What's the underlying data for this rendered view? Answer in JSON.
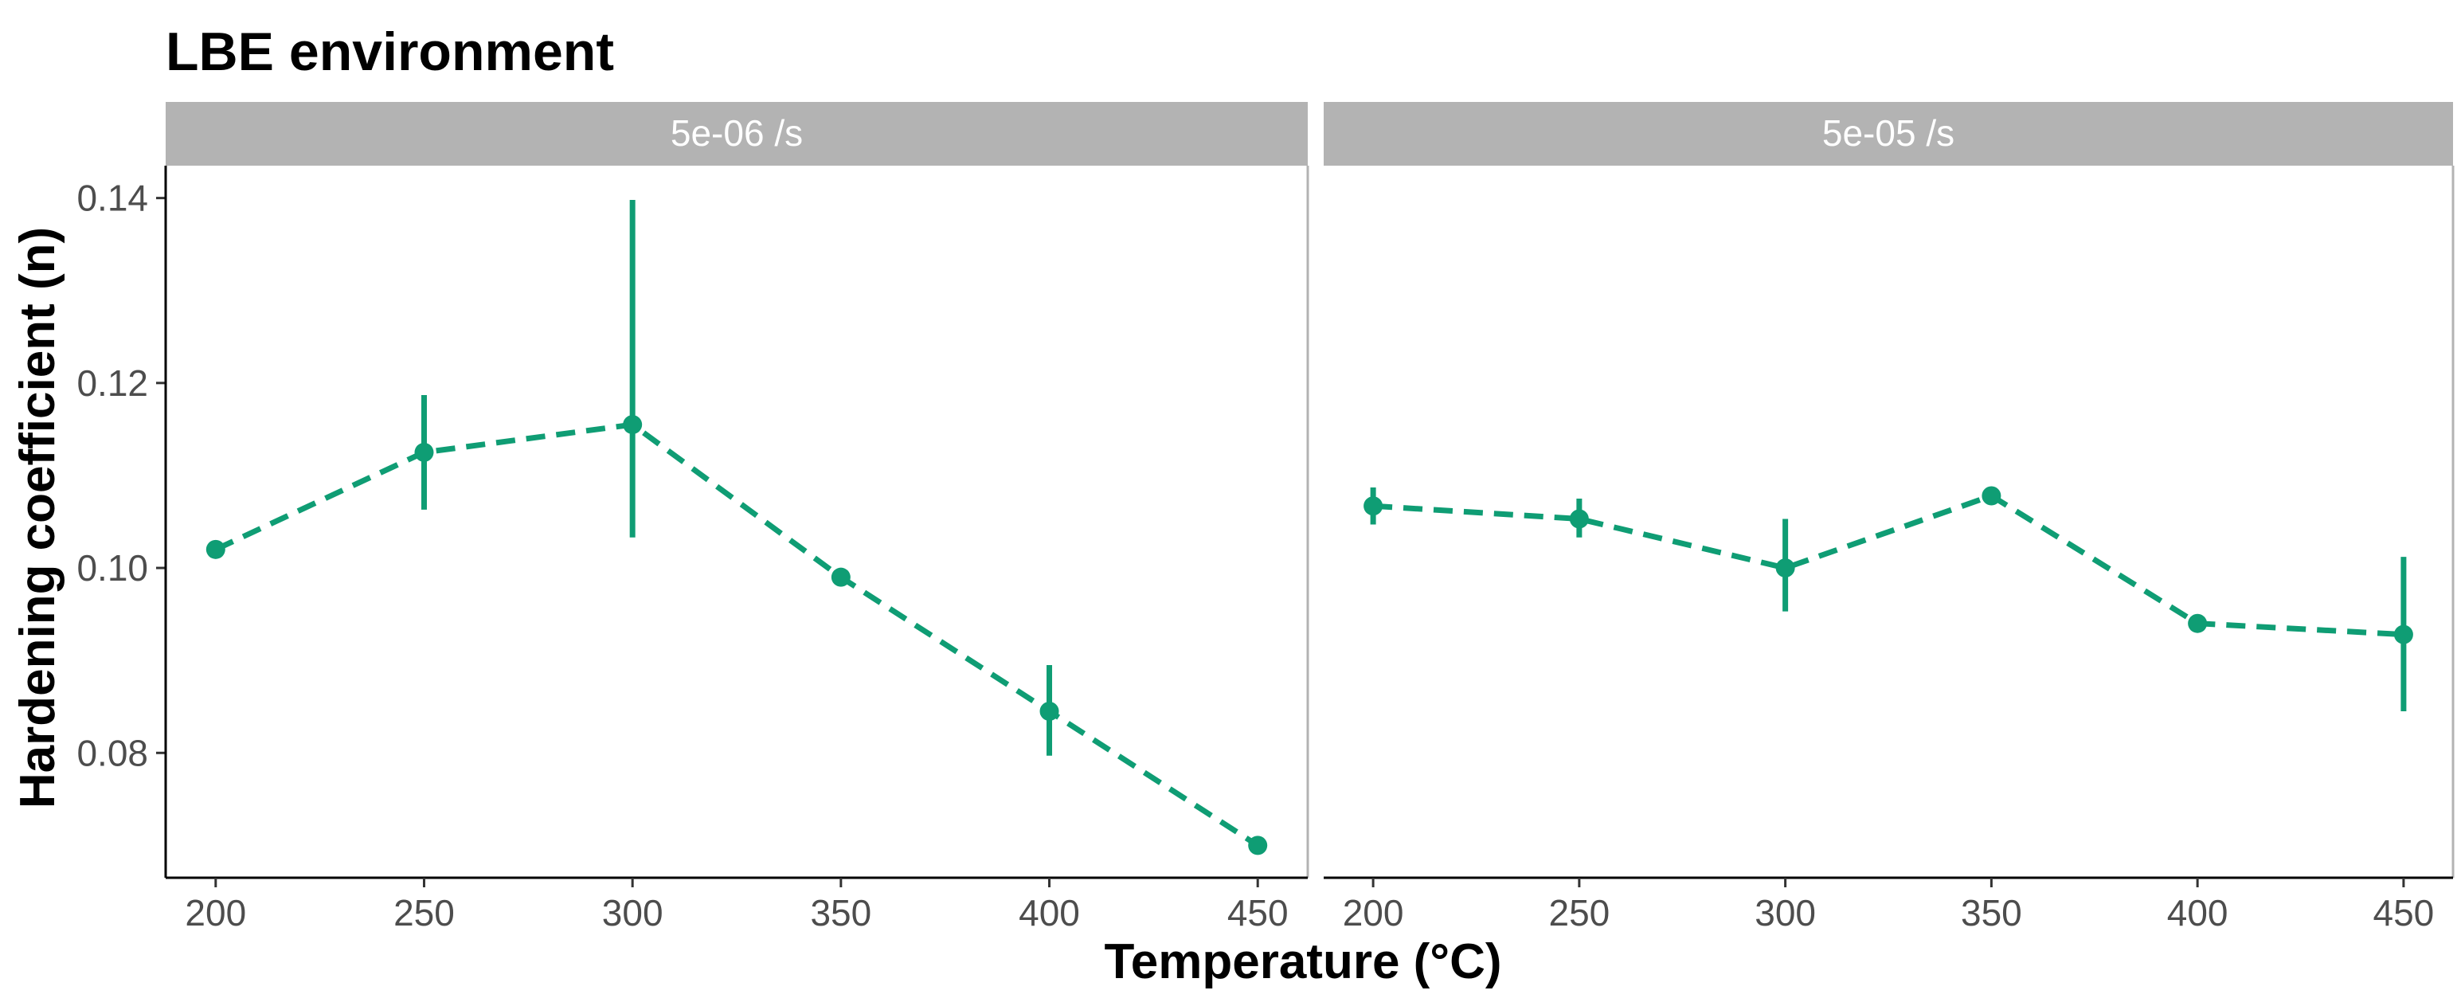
{
  "chart_data": {
    "type": "line",
    "title": "LBE environment",
    "xlabel": "Temperature (°C)",
    "ylabel": "Hardening coefficient (n)",
    "xlim": [
      188,
      462
    ],
    "ylim": [
      0.0665,
      0.1435
    ],
    "xticks": [
      200,
      250,
      300,
      350,
      400,
      450
    ],
    "yticks": [
      0.08,
      0.1,
      0.12,
      0.14
    ],
    "ytick_labels": [
      "0.08",
      "0.10",
      "0.12",
      "0.14"
    ],
    "grid": false,
    "line_style": "dashed",
    "error_bars": true,
    "panels": [
      {
        "label": "5e-06 /s",
        "x": [
          200,
          250,
          300,
          350,
          400,
          450
        ],
        "y": [
          0.102,
          0.1125,
          0.1155,
          0.099,
          0.0845,
          0.07
        ],
        "ymin": [
          0.102,
          0.1063,
          0.1033,
          0.099,
          0.0797,
          0.07
        ],
        "ymax": [
          0.102,
          0.1187,
          0.1398,
          0.099,
          0.0895,
          0.07
        ]
      },
      {
        "label": "5e-05 /s",
        "x": [
          200,
          250,
          300,
          350,
          400,
          450
        ],
        "y": [
          0.1067,
          0.1053,
          0.1,
          0.1078,
          0.094,
          0.0928
        ],
        "ymin": [
          0.1047,
          0.1033,
          0.0953,
          0.1078,
          0.094,
          0.0845
        ],
        "ymax": [
          0.1087,
          0.1075,
          0.1053,
          0.1078,
          0.094,
          0.1012
        ]
      }
    ]
  },
  "colors": {
    "series": "#0f9d74",
    "strip_bg": "#b3b3b3",
    "strip_text": "#ffffff",
    "axis_line": "#000000",
    "panel_border": "#b3b3b3"
  }
}
